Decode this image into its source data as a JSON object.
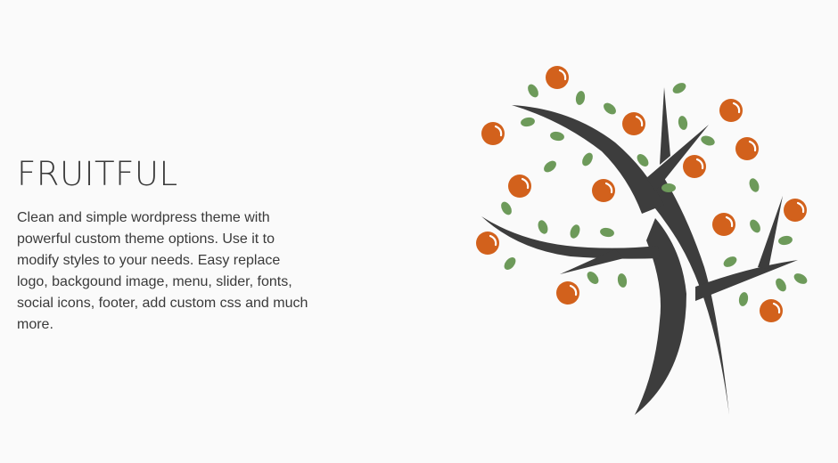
{
  "hero": {
    "title": "FRUITFUL",
    "description": "Clean and simple wordpress theme with powerful custom theme options. Use it to modify styles to your needs. Easy replace logo, backgound image, menu, slider, fonts, social icons, footer, add custom css and much more."
  },
  "illustration": {
    "icon": "fruit-tree-icon",
    "colors": {
      "trunk": "#3d3d3d",
      "fruit": "#d2611c",
      "leaf": "#6d9a5a",
      "background": "#fafafa"
    }
  }
}
